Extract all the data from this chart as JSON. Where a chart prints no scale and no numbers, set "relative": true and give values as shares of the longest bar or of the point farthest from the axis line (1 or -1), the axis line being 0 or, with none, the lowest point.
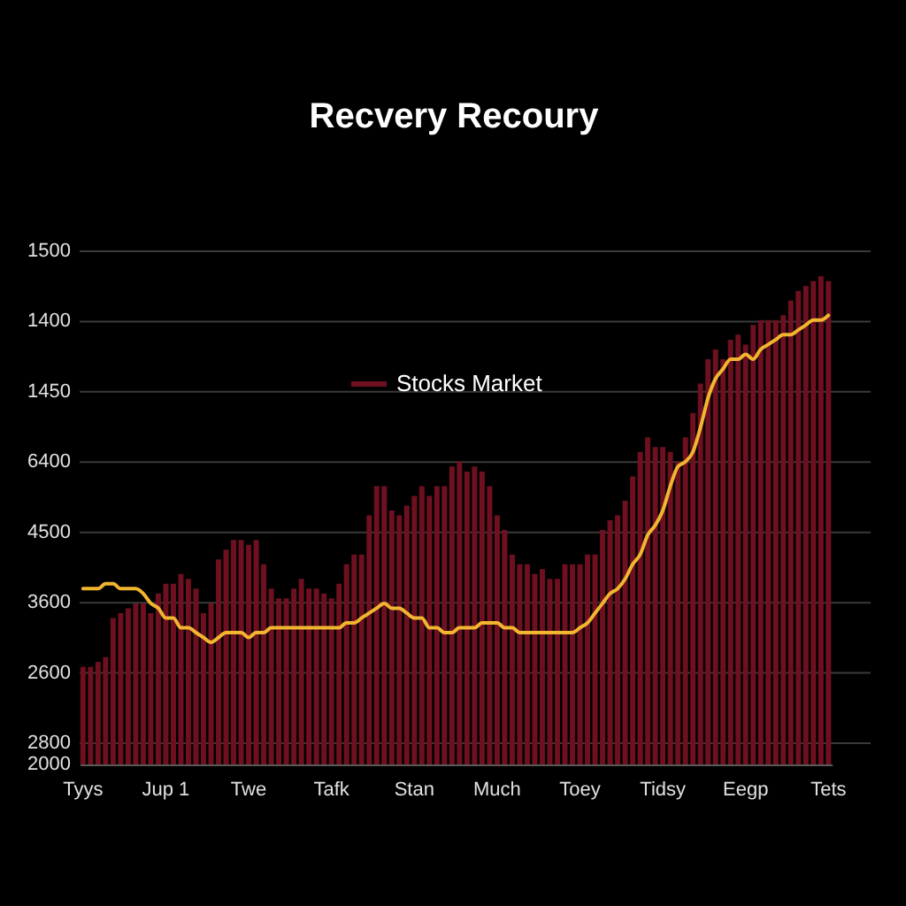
{
  "chart_data": {
    "type": "bar",
    "title": "Recvery Recoury",
    "relative": true,
    "categories": [
      "Tyys",
      null,
      null,
      null,
      null,
      null,
      null,
      null,
      null,
      null,
      null,
      "Jup 1",
      null,
      null,
      null,
      null,
      null,
      null,
      null,
      null,
      null,
      null,
      "Twe",
      null,
      null,
      null,
      null,
      null,
      null,
      null,
      null,
      null,
      null,
      "Tafk",
      null,
      null,
      null,
      null,
      null,
      null,
      null,
      null,
      null,
      null,
      "Stan",
      null,
      null,
      null,
      null,
      null,
      null,
      null,
      null,
      null,
      null,
      "Much",
      null,
      null,
      null,
      null,
      null,
      null,
      null,
      null,
      null,
      null,
      "Toey",
      null,
      null,
      null,
      null,
      null,
      null,
      null,
      null,
      null,
      null,
      "Tidsy",
      null,
      null,
      null,
      null,
      null,
      null,
      null,
      null,
      null,
      null,
      "Eegp",
      null,
      null,
      null,
      null,
      null,
      null,
      null,
      null,
      null,
      null,
      "Tets"
    ],
    "series": [
      {
        "name": "Stocks Market",
        "color": "#6e1020",
        "values": [
          0.2,
          0.2,
          0.21,
          0.22,
          0.3,
          0.31,
          0.32,
          0.33,
          0.33,
          0.31,
          0.35,
          0.37,
          0.37,
          0.39,
          0.38,
          0.36,
          0.31,
          0.33,
          0.42,
          0.44,
          0.46,
          0.46,
          0.45,
          0.46,
          0.41,
          0.36,
          0.34,
          0.34,
          0.36,
          0.38,
          0.36,
          0.36,
          0.35,
          0.34,
          0.37,
          0.41,
          0.43,
          0.43,
          0.51,
          0.57,
          0.57,
          0.52,
          0.51,
          0.53,
          0.55,
          0.57,
          0.55,
          0.57,
          0.57,
          0.61,
          0.62,
          0.6,
          0.61,
          0.6,
          0.57,
          0.51,
          0.48,
          0.43,
          0.41,
          0.41,
          0.39,
          0.4,
          0.38,
          0.38,
          0.41,
          0.41,
          0.41,
          0.43,
          0.43,
          0.48,
          0.5,
          0.51,
          0.54,
          0.59,
          0.64,
          0.67,
          0.65,
          0.65,
          0.64,
          0.62,
          0.67,
          0.72,
          0.78,
          0.83,
          0.85,
          0.83,
          0.87,
          0.88,
          0.86,
          0.9,
          0.91,
          0.91,
          0.91,
          0.92,
          0.95,
          0.97,
          0.98,
          0.99,
          1,
          0.99
        ]
      },
      {
        "type": "line",
        "color": "#f2b530",
        "values": [
          0.36,
          0.36,
          0.36,
          0.37,
          0.37,
          0.36,
          0.36,
          0.36,
          0.35,
          0.33,
          0.32,
          0.3,
          0.3,
          0.28,
          0.28,
          0.27,
          0.26,
          0.25,
          0.26,
          0.27,
          0.27,
          0.27,
          0.26,
          0.27,
          0.27,
          0.28,
          0.28,
          0.28,
          0.28,
          0.28,
          0.28,
          0.28,
          0.28,
          0.28,
          0.28,
          0.29,
          0.29,
          0.3,
          0.31,
          0.32,
          0.33,
          0.32,
          0.32,
          0.31,
          0.3,
          0.3,
          0.28,
          0.28,
          0.27,
          0.27,
          0.28,
          0.28,
          0.28,
          0.29,
          0.29,
          0.29,
          0.28,
          0.28,
          0.27,
          0.27,
          0.27,
          0.27,
          0.27,
          0.27,
          0.27,
          0.27,
          0.28,
          0.29,
          0.31,
          0.33,
          0.35,
          0.36,
          0.38,
          0.41,
          0.43,
          0.47,
          0.49,
          0.52,
          0.57,
          0.61,
          0.62,
          0.64,
          0.69,
          0.75,
          0.79,
          0.81,
          0.83,
          0.83,
          0.84,
          0.83,
          0.85,
          0.86,
          0.87,
          0.88,
          0.88,
          0.89,
          0.9,
          0.91,
          0.91,
          0.92
        ]
      }
    ],
    "annotations": [
      "1500",
      "1400",
      "1450",
      "6400",
      "4500",
      "3600",
      "2600",
      "2800",
      "2000"
    ],
    "grid": "y",
    "legend": "top",
    "line_style": "solid",
    "marker": "none"
  }
}
